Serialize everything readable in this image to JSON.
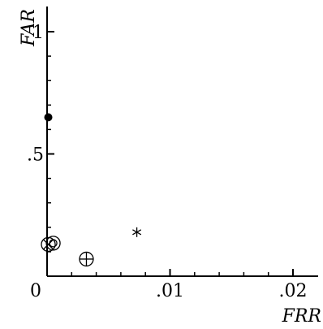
{
  "chart_data": {
    "type": "scatter",
    "title": "",
    "xlabel": "FRR",
    "ylabel": "FAR",
    "xlim": [
      0,
      0.02
    ],
    "ylim": [
      0,
      1
    ],
    "grid": false,
    "legend": "none",
    "x_ticks": [
      {
        "value": 0,
        "label": "0"
      },
      {
        "value": 0.01,
        "label": ".01"
      },
      {
        "value": 0.02,
        "label": ".02"
      }
    ],
    "y_ticks": [
      {
        "value": 0.5,
        "label": ".5"
      },
      {
        "value": 1,
        "label": "1"
      }
    ],
    "points": [
      {
        "x": 0.0001,
        "y": 0.65,
        "marker": "filled-circle"
      },
      {
        "x": 0.0001,
        "y": 0.13,
        "marker": "circled-x"
      },
      {
        "x": 0.0005,
        "y": 0.135,
        "marker": "double-circle"
      },
      {
        "x": 0.0032,
        "y": 0.07,
        "marker": "circled-plus"
      },
      {
        "x": 0.0073,
        "y": 0.18,
        "marker": "asterisk"
      }
    ]
  },
  "colors": {
    "axis": "#000000",
    "marker": "#000000"
  }
}
